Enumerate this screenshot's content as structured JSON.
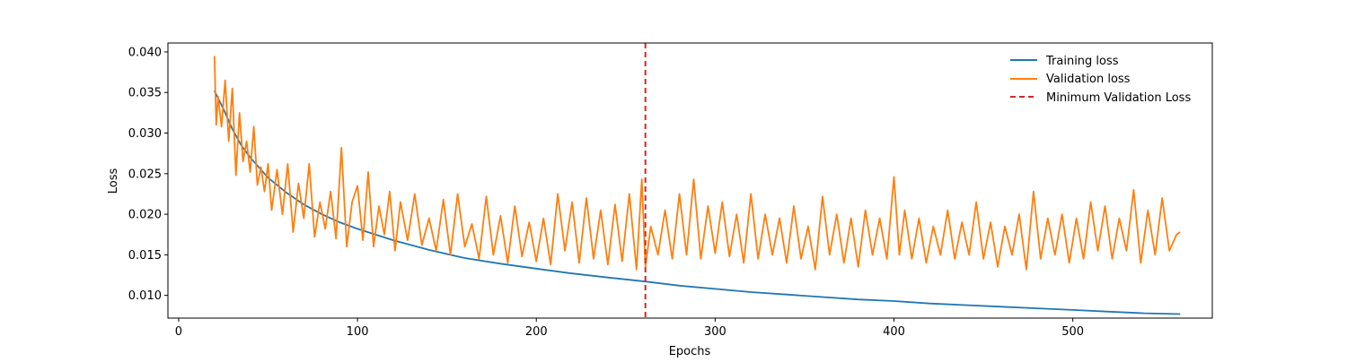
{
  "chart_data": {
    "type": "line",
    "title": "",
    "xlabel": "Epochs",
    "ylabel": "Loss",
    "xlim": [
      -6,
      578
    ],
    "ylim": [
      0.0072,
      0.0411
    ],
    "xticks": [
      0,
      100,
      200,
      300,
      400,
      500
    ],
    "yticks": [
      0.01,
      0.015,
      0.02,
      0.025,
      0.03,
      0.035,
      0.04
    ],
    "xtick_labels": [
      "0",
      "100",
      "200",
      "300",
      "400",
      "500"
    ],
    "ytick_labels": [
      "0.010",
      "0.015",
      "0.020",
      "0.025",
      "0.030",
      "0.035",
      "0.040"
    ],
    "grid": false,
    "legend_position": "top-right",
    "series": [
      {
        "name": "Training loss",
        "color": "#1f77b4",
        "x": [
          20,
          25,
          30,
          35,
          40,
          50,
          60,
          70,
          80,
          90,
          100,
          120,
          140,
          160,
          180,
          200,
          220,
          240,
          261,
          280,
          300,
          320,
          340,
          360,
          380,
          400,
          420,
          440,
          460,
          480,
          500,
          520,
          540,
          560
        ],
        "y": [
          0.0352,
          0.033,
          0.0305,
          0.0285,
          0.027,
          0.0245,
          0.0227,
          0.0212,
          0.02,
          0.019,
          0.0182,
          0.0168,
          0.0156,
          0.0146,
          0.0139,
          0.0133,
          0.0127,
          0.0122,
          0.0117,
          0.0112,
          0.0108,
          0.0104,
          0.0101,
          0.0098,
          0.0095,
          0.0093,
          0.009,
          0.0088,
          0.0086,
          0.0084,
          0.0082,
          0.008,
          0.0078,
          0.0077
        ]
      },
      {
        "name": "Validation loss",
        "color": "#ff7f0e",
        "x": [
          20,
          21,
          22,
          24,
          26,
          28,
          30,
          32,
          34,
          36,
          38,
          40,
          42,
          44,
          46,
          48,
          50,
          52,
          55,
          58,
          61,
          64,
          67,
          70,
          73,
          76,
          79,
          82,
          85,
          88,
          91,
          94,
          97,
          100,
          103,
          106,
          109,
          112,
          115,
          118,
          121,
          124,
          128,
          132,
          136,
          140,
          144,
          148,
          152,
          156,
          160,
          164,
          168,
          172,
          176,
          180,
          184,
          188,
          192,
          196,
          200,
          204,
          208,
          212,
          216,
          220,
          224,
          228,
          232,
          236,
          240,
          244,
          248,
          252,
          256,
          259,
          261,
          264,
          268,
          272,
          276,
          280,
          284,
          288,
          292,
          296,
          300,
          304,
          308,
          312,
          316,
          320,
          324,
          328,
          332,
          336,
          340,
          344,
          348,
          352,
          356,
          360,
          364,
          368,
          372,
          376,
          380,
          384,
          388,
          392,
          396,
          400,
          403,
          406,
          410,
          414,
          418,
          422,
          426,
          430,
          434,
          438,
          442,
          446,
          450,
          454,
          458,
          462,
          466,
          470,
          474,
          478,
          482,
          486,
          490,
          494,
          498,
          502,
          506,
          510,
          514,
          518,
          522,
          526,
          530,
          534,
          538,
          542,
          546,
          550,
          554,
          558,
          560
        ],
        "y": [
          0.0395,
          0.031,
          0.0345,
          0.0308,
          0.0365,
          0.029,
          0.0355,
          0.0248,
          0.0325,
          0.0265,
          0.029,
          0.0252,
          0.0308,
          0.0236,
          0.0258,
          0.0228,
          0.0262,
          0.0205,
          0.0255,
          0.02,
          0.0262,
          0.0178,
          0.0238,
          0.0195,
          0.0262,
          0.0172,
          0.0215,
          0.0182,
          0.0228,
          0.017,
          0.0282,
          0.016,
          0.0215,
          0.0235,
          0.0168,
          0.0252,
          0.016,
          0.021,
          0.0175,
          0.0228,
          0.0155,
          0.0215,
          0.0168,
          0.0225,
          0.0162,
          0.0195,
          0.0155,
          0.0218,
          0.015,
          0.0225,
          0.016,
          0.0188,
          0.0145,
          0.0222,
          0.015,
          0.0198,
          0.014,
          0.021,
          0.0148,
          0.019,
          0.0142,
          0.0195,
          0.0138,
          0.0225,
          0.0155,
          0.0215,
          0.014,
          0.022,
          0.0145,
          0.0205,
          0.0138,
          0.0212,
          0.0142,
          0.0225,
          0.0132,
          0.0243,
          0.0135,
          0.0185,
          0.015,
          0.0205,
          0.0145,
          0.0225,
          0.015,
          0.0243,
          0.0145,
          0.021,
          0.0152,
          0.0215,
          0.0148,
          0.02,
          0.014,
          0.0225,
          0.0145,
          0.02,
          0.015,
          0.0195,
          0.014,
          0.021,
          0.0145,
          0.0185,
          0.0132,
          0.0222,
          0.015,
          0.02,
          0.014,
          0.0195,
          0.0135,
          0.0205,
          0.015,
          0.0195,
          0.0145,
          0.0246,
          0.015,
          0.0205,
          0.0145,
          0.0195,
          0.014,
          0.0185,
          0.015,
          0.0205,
          0.0145,
          0.019,
          0.015,
          0.0215,
          0.0145,
          0.019,
          0.0135,
          0.0185,
          0.015,
          0.02,
          0.0132,
          0.0228,
          0.0145,
          0.0195,
          0.015,
          0.02,
          0.014,
          0.0195,
          0.0145,
          0.0215,
          0.0155,
          0.021,
          0.0145,
          0.0195,
          0.0155,
          0.023,
          0.014,
          0.0205,
          0.015,
          0.022,
          0.0155,
          0.0175,
          0.0178
        ]
      }
    ],
    "vline": {
      "name": "Minimum Validation Loss",
      "x": 261,
      "color": "#d62728",
      "style": "dashed"
    }
  }
}
